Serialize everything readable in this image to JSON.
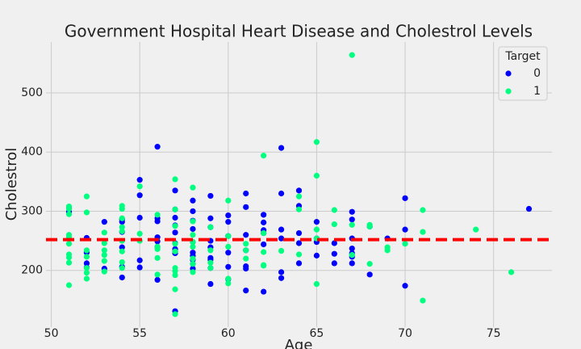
{
  "chart_data": {
    "type": "scatter",
    "title": "Government Hospital Heart Disease and Cholestrol Levels",
    "x_label": "Age",
    "y_label": "Cholestrol",
    "legend_title": "Target",
    "legend_position": "upper right",
    "xlim": [
      49.7,
      78.3
    ],
    "ylim": [
      104,
      586
    ],
    "xticks": [
      50,
      55,
      60,
      65,
      70,
      75
    ],
    "yticks": [
      200,
      300,
      400,
      500
    ],
    "grid": true,
    "hline": {
      "value": 252,
      "color": "#ff0000"
    },
    "series": [
      {
        "name": "0",
        "color": "#0000ff",
        "x": [
          51,
          51,
          52,
          52,
          52,
          52,
          53,
          53,
          54,
          54,
          54,
          54,
          54,
          54,
          55,
          55,
          55,
          55,
          55,
          56,
          56,
          56,
          56,
          56,
          56,
          56,
          57,
          57,
          57,
          57,
          57,
          57,
          57,
          57,
          57,
          57,
          58,
          58,
          58,
          58,
          58,
          58,
          58,
          58,
          58,
          58,
          59,
          59,
          59,
          59,
          59,
          59,
          59,
          59,
          59,
          60,
          60,
          60,
          60,
          60,
          60,
          61,
          61,
          61,
          61,
          61,
          61,
          61,
          62,
          62,
          62,
          62,
          62,
          62,
          63,
          63,
          63,
          63,
          63,
          63,
          64,
          64,
          64,
          64,
          64,
          65,
          65,
          65,
          65,
          66,
          66,
          66,
          67,
          67,
          67,
          67,
          67,
          67,
          67,
          68,
          68,
          69,
          70,
          70,
          70,
          77
        ],
        "values": [
          299,
          305,
          255,
          230,
          212,
          205,
          282,
          203,
          286,
          282,
          265,
          239,
          206,
          188,
          353,
          327,
          289,
          217,
          205,
          409,
          288,
          283,
          256,
          249,
          240,
          184,
          335,
          303,
          289,
          276,
          264,
          246,
          236,
          232,
          229,
          131,
          318,
          300,
          284,
          270,
          248,
          230,
          225,
          218,
          211,
          203,
          326,
          288,
          273,
          250,
          239,
          221,
          218,
          204,
          177,
          293,
          282,
          258,
          230,
          206,
          185,
          330,
          307,
          260,
          234,
          207,
          203,
          166,
          294,
          281,
          268,
          263,
          244,
          164,
          407,
          330,
          269,
          254,
          197,
          187,
          335,
          309,
          263,
          246,
          212,
          282,
          254,
          248,
          225,
          246,
          228,
          212,
          299,
          286,
          254,
          237,
          229,
          223,
          212,
          274,
          193,
          254,
          322,
          269,
          174,
          304
        ]
      },
      {
        "name": "1",
        "color": "#00ff80",
        "x": [
          51,
          51,
          51,
          51,
          51,
          51,
          51,
          51,
          51,
          51,
          52,
          52,
          52,
          52,
          52,
          52,
          52,
          53,
          53,
          53,
          53,
          53,
          53,
          54,
          54,
          54,
          54,
          54,
          54,
          54,
          54,
          54,
          55,
          55,
          55,
          56,
          56,
          56,
          56,
          56,
          57,
          57,
          57,
          57,
          57,
          57,
          57,
          57,
          57,
          57,
          58,
          58,
          58,
          58,
          58,
          58,
          58,
          58,
          59,
          59,
          59,
          59,
          60,
          60,
          60,
          60,
          60,
          61,
          61,
          61,
          62,
          62,
          62,
          62,
          62,
          63,
          64,
          64,
          64,
          65,
          65,
          65,
          65,
          65,
          66,
          66,
          67,
          67,
          67,
          68,
          68,
          68,
          69,
          69,
          70,
          71,
          71,
          71,
          74,
          76
        ],
        "values": [
          308,
          304,
          295,
          260,
          256,
          245,
          227,
          222,
          213,
          175,
          325,
          298,
          234,
          223,
          204,
          196,
          186,
          264,
          246,
          234,
          226,
          216,
          198,
          309,
          304,
          288,
          273,
          266,
          250,
          232,
          214,
          204,
          342,
          262,
          250,
          294,
          240,
          236,
          221,
          193,
          354,
          303,
          275,
          245,
          232,
          204,
          199,
          192,
          168,
          126,
          340,
          283,
          260,
          248,
          240,
          220,
          211,
          197,
          273,
          234,
          213,
          204,
          318,
          240,
          178,
          186,
          258,
          245,
          234,
          220,
          394,
          263,
          231,
          209,
          208,
          233,
          325,
          303,
          227,
          417,
          360,
          269,
          254,
          177,
          302,
          278,
          564,
          277,
          226,
          277,
          274,
          211,
          239,
          234,
          245,
          302,
          265,
          149,
          269,
          197
        ]
      }
    ]
  }
}
